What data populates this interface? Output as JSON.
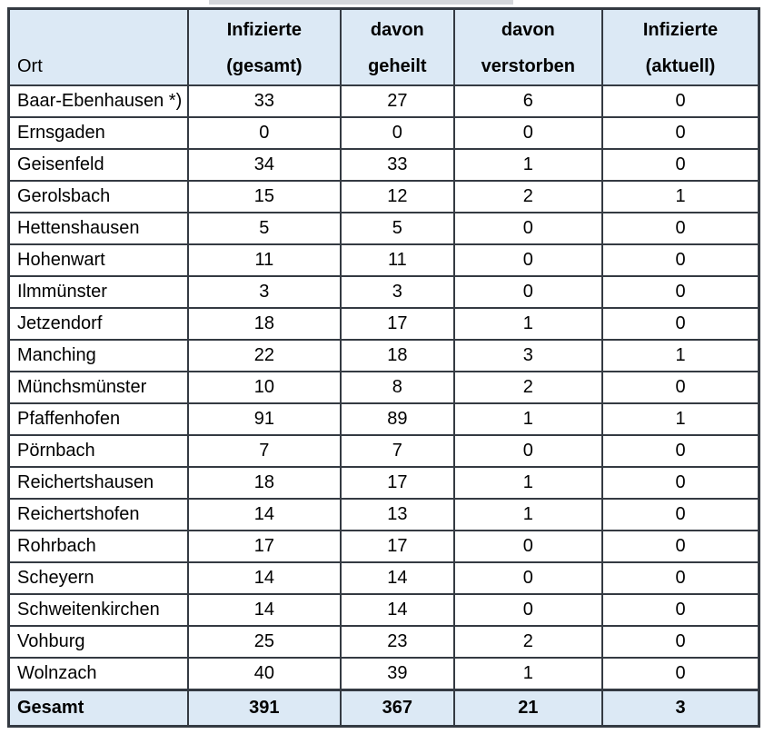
{
  "colors": {
    "header_background": "#dce9f5",
    "total_row_background": "#dce9f5",
    "border": "#343a42",
    "text": "#000000",
    "page_background": "#ffffff"
  },
  "table": {
    "columns": [
      {
        "key": "ort",
        "line1": "",
        "line2": "Ort"
      },
      {
        "key": "gesamt",
        "line1": "Infizierte",
        "line2": "(gesamt)"
      },
      {
        "key": "geheilt",
        "line1": "davon",
        "line2": "geheilt"
      },
      {
        "key": "verstorben",
        "line1": "davon",
        "line2": "verstorben"
      },
      {
        "key": "aktuell",
        "line1": "Infizierte",
        "line2": "(aktuell)"
      }
    ],
    "rows": [
      {
        "ort": "Baar-Ebenhausen *)",
        "gesamt": "33",
        "geheilt": "27",
        "verstorben": "6",
        "aktuell": "0"
      },
      {
        "ort": "Ernsgaden",
        "gesamt": "0",
        "geheilt": "0",
        "verstorben": "0",
        "aktuell": "0"
      },
      {
        "ort": "Geisenfeld",
        "gesamt": "34",
        "geheilt": "33",
        "verstorben": "1",
        "aktuell": "0"
      },
      {
        "ort": "Gerolsbach",
        "gesamt": "15",
        "geheilt": "12",
        "verstorben": "2",
        "aktuell": "1"
      },
      {
        "ort": "Hettenshausen",
        "gesamt": "5",
        "geheilt": "5",
        "verstorben": "0",
        "aktuell": "0"
      },
      {
        "ort": "Hohenwart",
        "gesamt": "11",
        "geheilt": "11",
        "verstorben": "0",
        "aktuell": "0"
      },
      {
        "ort": "Ilmmünster",
        "gesamt": "3",
        "geheilt": "3",
        "verstorben": "0",
        "aktuell": "0"
      },
      {
        "ort": "Jetzendorf",
        "gesamt": "18",
        "geheilt": "17",
        "verstorben": "1",
        "aktuell": "0"
      },
      {
        "ort": "Manching",
        "gesamt": "22",
        "geheilt": "18",
        "verstorben": "3",
        "aktuell": "1"
      },
      {
        "ort": "Münchsmünster",
        "gesamt": "10",
        "geheilt": "8",
        "verstorben": "2",
        "aktuell": "0"
      },
      {
        "ort": "Pfaffenhofen",
        "gesamt": "91",
        "geheilt": "89",
        "verstorben": "1",
        "aktuell": "1"
      },
      {
        "ort": "Pörnbach",
        "gesamt": "7",
        "geheilt": "7",
        "verstorben": "0",
        "aktuell": "0"
      },
      {
        "ort": "Reichertshausen",
        "gesamt": "18",
        "geheilt": "17",
        "verstorben": "1",
        "aktuell": "0"
      },
      {
        "ort": "Reichertshofen",
        "gesamt": "14",
        "geheilt": "13",
        "verstorben": "1",
        "aktuell": "0"
      },
      {
        "ort": "Rohrbach",
        "gesamt": "17",
        "geheilt": "17",
        "verstorben": "0",
        "aktuell": "0"
      },
      {
        "ort": "Scheyern",
        "gesamt": "14",
        "geheilt": "14",
        "verstorben": "0",
        "aktuell": "0"
      },
      {
        "ort": "Schweitenkirchen",
        "gesamt": "14",
        "geheilt": "14",
        "verstorben": "0",
        "aktuell": "0"
      },
      {
        "ort": "Vohburg",
        "gesamt": "25",
        "geheilt": "23",
        "verstorben": "2",
        "aktuell": "0"
      },
      {
        "ort": "Wolnzach",
        "gesamt": "40",
        "geheilt": "39",
        "verstorben": "1",
        "aktuell": "0"
      }
    ],
    "total_row": {
      "ort": "Gesamt",
      "gesamt": "391",
      "geheilt": "367",
      "verstorben": "21",
      "aktuell": "3"
    }
  }
}
